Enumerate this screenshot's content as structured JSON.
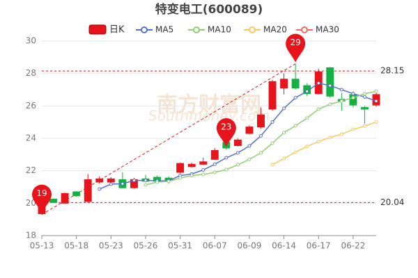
{
  "chart_data": {
    "type": "candlestick",
    "title": "特变电工(600089)",
    "watermark": [
      "南方财富网",
      "Southmoney.com"
    ],
    "categories": [
      "05-13",
      null,
      null,
      "05-18",
      null,
      null,
      "05-23",
      null,
      null,
      "05-26",
      null,
      null,
      "05-31",
      null,
      null,
      "06-07",
      null,
      null,
      "06-09",
      null,
      null,
      "06-14",
      null,
      null,
      "06-17",
      null,
      null,
      "06-22",
      null,
      null
    ],
    "candle": {
      "name": "日K",
      "up_color": "#e8141b",
      "down_color": "#14b143",
      "open": [
        19.35,
        20.25,
        20.0,
        20.7,
        20.1,
        21.3,
        21.3,
        21.45,
        20.95,
        21.5,
        21.6,
        21.55,
        21.9,
        22.25,
        22.4,
        22.7,
        23.75,
        23.55,
        24.3,
        24.7,
        25.8,
        27.1,
        27.65,
        27.25,
        26.75,
        28.35,
        26.4,
        26.7,
        25.9,
        26.05
      ],
      "close": [
        19.95,
        20.05,
        20.6,
        20.45,
        21.45,
        21.5,
        21.5,
        20.95,
        21.45,
        21.35,
        21.35,
        21.4,
        22.45,
        22.4,
        22.55,
        23.25,
        23.4,
        23.9,
        24.7,
        25.45,
        27.5,
        27.65,
        27.1,
        26.75,
        28.1,
        26.6,
        26.3,
        26.05,
        25.8,
        26.7
      ],
      "high": [
        20.0,
        20.3,
        20.65,
        20.75,
        21.8,
        21.65,
        21.6,
        21.9,
        21.55,
        21.75,
        21.7,
        21.65,
        22.5,
        22.5,
        22.8,
        23.4,
        23.9,
        24.0,
        24.8,
        25.9,
        27.6,
        28.0,
        28.6,
        27.4,
        28.3,
        28.4,
        26.8,
        26.9,
        26.0,
        27.0
      ],
      "low": [
        19.3,
        20.0,
        19.95,
        20.4,
        20.05,
        21.2,
        21.25,
        20.9,
        20.9,
        21.3,
        21.3,
        21.2,
        21.85,
        22.2,
        22.35,
        22.65,
        23.3,
        23.5,
        24.25,
        24.6,
        25.7,
        26.7,
        27.0,
        26.6,
        26.7,
        26.5,
        25.7,
        25.9,
        24.9,
        25.95
      ]
    },
    "series": [
      {
        "name": "MA5",
        "color": "#5470c6",
        "values": [
          null,
          null,
          null,
          null,
          null,
          20.87,
          21.17,
          21.2,
          21.4,
          21.4,
          21.38,
          21.38,
          21.7,
          21.8,
          22.05,
          22.4,
          22.8,
          23.1,
          23.53,
          24.15,
          25.0,
          25.85,
          26.5,
          26.9,
          27.4,
          27.25,
          27.0,
          26.75,
          26.55,
          26.3
        ]
      },
      {
        "name": "MA10",
        "color": "#91cc75",
        "values": [
          null,
          null,
          null,
          null,
          null,
          null,
          null,
          null,
          null,
          21.13,
          21.3,
          21.35,
          21.55,
          21.7,
          21.77,
          21.9,
          22.07,
          22.37,
          22.7,
          23.1,
          23.7,
          24.35,
          24.77,
          25.25,
          25.8,
          26.1,
          26.3,
          26.5,
          26.75,
          26.9
        ]
      },
      {
        "name": "MA20",
        "color": "#fac858",
        "values": [
          null,
          null,
          null,
          null,
          null,
          null,
          null,
          null,
          null,
          null,
          null,
          null,
          null,
          null,
          null,
          null,
          null,
          null,
          null,
          null,
          22.37,
          22.75,
          23.15,
          23.5,
          23.8,
          24.05,
          24.25,
          24.55,
          24.75,
          25.0
        ]
      },
      {
        "name": "MA30",
        "color": "#ee6666",
        "values": [
          null,
          null,
          null,
          null,
          null,
          null,
          null,
          null,
          null,
          null,
          null,
          null,
          null,
          null,
          null,
          null,
          null,
          null,
          null,
          null,
          null,
          null,
          null,
          null,
          null,
          null,
          null,
          null,
          null,
          null
        ]
      }
    ],
    "mark_points": [
      {
        "index": 0,
        "value": 19.3,
        "label": "19"
      },
      {
        "index": 16,
        "value": 23.4,
        "label": "23"
      },
      {
        "index": 22,
        "value": 28.6,
        "label": "29"
      }
    ],
    "mark_color": "#e8141b",
    "ref_lines": [
      28.15,
      20.04
    ],
    "ylim": [
      18,
      30
    ],
    "yticks": [
      18,
      20,
      22,
      24,
      26,
      28,
      30
    ],
    "grid": true
  }
}
